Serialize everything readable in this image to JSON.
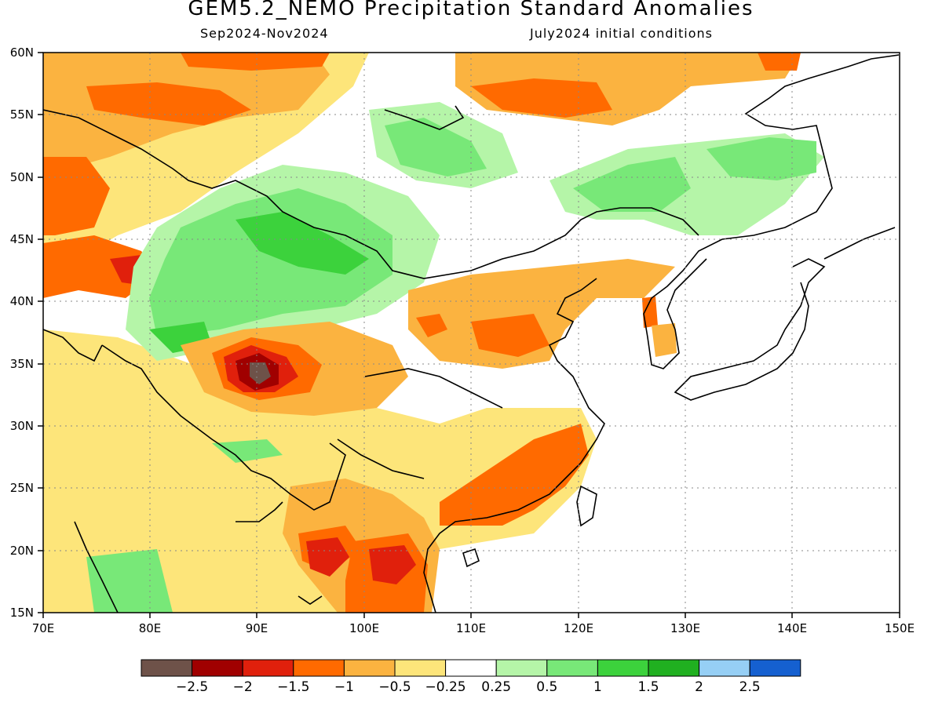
{
  "title": "GEM5.2_NEMO Precipitation Standard Anomalies",
  "period": "Sep2024-Nov2024",
  "initial_conditions": "July2024 initial conditions",
  "lon_ticks": [
    "70E",
    "80E",
    "90E",
    "100E",
    "110E",
    "120E",
    "130E",
    "140E",
    "150E"
  ],
  "lat_ticks": [
    "60N",
    "55N",
    "50N",
    "45N",
    "40N",
    "35N",
    "30N",
    "25N",
    "20N",
    "15N"
  ],
  "colorbar": {
    "colors": [
      "#6e5249",
      "#a00000",
      "#e0200c",
      "#ff6a00",
      "#fbb340",
      "#fde57a",
      "#ffffff",
      "#b5f5a8",
      "#78e878",
      "#3cd23c",
      "#20b020",
      "#96cff5",
      "#1560d0"
    ],
    "labels": [
      "-2.5",
      "-2",
      "-1.5",
      "-1",
      "-0.5",
      "-0.25",
      "0.25",
      "0.5",
      "1",
      "1.5",
      "2",
      "2.5"
    ]
  },
  "map": {
    "lon_range": [
      70,
      150
    ],
    "lat_range": [
      15,
      60
    ],
    "features": [
      {
        "name": "anomaly-positive-mongolia",
        "category": "0.5 to 1",
        "color": "#78e878"
      },
      {
        "name": "anomaly-positive-xinjiang",
        "category": "1 to 1.5",
        "color": "#3cd23c"
      },
      {
        "name": "anomaly-negative-tibet",
        "category": "< -2.5",
        "color": "#6e5249"
      },
      {
        "name": "anomaly-negative-south-china",
        "category": "-1.5 to -1",
        "color": "#ff6a00"
      },
      {
        "name": "anomaly-negative-indochina",
        "category": "-2 to -1.5",
        "color": "#e0200c"
      }
    ]
  }
}
